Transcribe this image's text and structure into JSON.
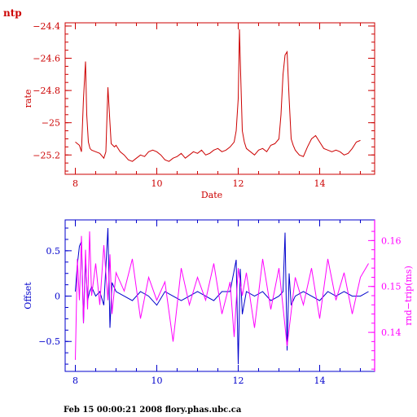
{
  "app_label": "ntp",
  "footer": "Feb 15 00:00:21 2008 flory.phas.ubc.ca",
  "colors": {
    "top": "#cc0000",
    "offset": "#0000cc",
    "rtt": "#ff00ff",
    "text": "#000000"
  },
  "chart_data": [
    {
      "type": "line",
      "title": "",
      "xlabel": "Date",
      "ylabel": "rate",
      "xlim": [
        7.75,
        15.35
      ],
      "ylim": [
        -25.32,
        -24.38
      ],
      "x_ticks": [
        8,
        10,
        12,
        14
      ],
      "x_tick_labels": [
        "8",
        "10",
        "12",
        "14"
      ],
      "y_ticks": [
        -25.2,
        -25.0,
        -24.8,
        -24.6,
        -24.4
      ],
      "y_tick_labels": [
        "−25.2",
        "−25",
        "−24.8",
        "−24.6",
        "−24.4"
      ],
      "grid": false,
      "series": [
        {
          "color": "#cc0000",
          "x": [
            8.0,
            8.05,
            8.1,
            8.15,
            8.2,
            8.25,
            8.28,
            8.32,
            8.36,
            8.4,
            8.5,
            8.6,
            8.7,
            8.75,
            8.8,
            8.85,
            8.88,
            8.92,
            8.96,
            9.0,
            9.1,
            9.2,
            9.3,
            9.4,
            9.5,
            9.6,
            9.7,
            9.8,
            9.9,
            10.0,
            10.1,
            10.2,
            10.3,
            10.4,
            10.5,
            10.6,
            10.7,
            10.8,
            10.9,
            11.0,
            11.1,
            11.2,
            11.3,
            11.4,
            11.5,
            11.6,
            11.7,
            11.8,
            11.9,
            11.95,
            12.0,
            12.03,
            12.06,
            12.1,
            12.15,
            12.2,
            12.3,
            12.4,
            12.5,
            12.6,
            12.7,
            12.8,
            12.9,
            13.0,
            13.05,
            13.1,
            13.15,
            13.2,
            13.25,
            13.3,
            13.35,
            13.4,
            13.5,
            13.6,
            13.7,
            13.8,
            13.9,
            14.0,
            14.1,
            14.2,
            14.3,
            14.4,
            14.5,
            14.6,
            14.7,
            14.8,
            14.9,
            15.0
          ],
          "values": [
            -25.12,
            -25.13,
            -25.14,
            -25.18,
            -24.85,
            -24.62,
            -24.95,
            -25.12,
            -25.16,
            -25.17,
            -25.18,
            -25.19,
            -25.22,
            -25.18,
            -24.78,
            -25.0,
            -25.13,
            -25.14,
            -25.15,
            -25.14,
            -25.18,
            -25.2,
            -25.23,
            -25.24,
            -25.22,
            -25.2,
            -25.21,
            -25.18,
            -25.17,
            -25.18,
            -25.2,
            -25.23,
            -25.24,
            -25.22,
            -25.21,
            -25.19,
            -25.22,
            -25.2,
            -25.18,
            -25.19,
            -25.17,
            -25.2,
            -25.19,
            -25.17,
            -25.16,
            -25.18,
            -25.17,
            -25.15,
            -25.12,
            -25.05,
            -24.85,
            -24.42,
            -24.7,
            -25.05,
            -25.12,
            -25.16,
            -25.18,
            -25.2,
            -25.17,
            -25.16,
            -25.18,
            -25.14,
            -25.13,
            -25.1,
            -24.95,
            -24.7,
            -24.58,
            -24.56,
            -24.85,
            -25.1,
            -25.14,
            -25.17,
            -25.2,
            -25.21,
            -25.15,
            -25.1,
            -25.08,
            -25.12,
            -25.16,
            -25.17,
            -25.18,
            -25.17,
            -25.18,
            -25.2,
            -25.19,
            -25.16,
            -25.12,
            -25.11
          ]
        }
      ]
    },
    {
      "type": "line",
      "title": "",
      "xlabel": "",
      "ylabel": "Offset",
      "y2label": "rnd−trip(ms)",
      "xlim": [
        7.75,
        15.35
      ],
      "ylim": [
        -0.83,
        0.84
      ],
      "y2lim": [
        0.1315,
        0.1645
      ],
      "x_ticks": [
        8,
        10,
        12,
        14
      ],
      "x_tick_labels": [
        "8",
        "10",
        "12",
        "14"
      ],
      "y_ticks": [
        -0.5,
        0,
        0.5
      ],
      "y_tick_labels": [
        "−0.5",
        "0",
        "0.5"
      ],
      "y2_ticks": [
        0.14,
        0.15,
        0.16
      ],
      "y2_tick_labels": [
        "0.14",
        "0.15",
        "0.16"
      ],
      "grid": false,
      "series": [
        {
          "axis": "left",
          "color": "#0000cc",
          "x": [
            8.0,
            8.05,
            8.1,
            8.15,
            8.2,
            8.25,
            8.3,
            8.35,
            8.4,
            8.5,
            8.6,
            8.7,
            8.8,
            8.85,
            8.9,
            9.0,
            9.2,
            9.4,
            9.6,
            9.8,
            10.0,
            10.2,
            10.4,
            10.6,
            10.8,
            11.0,
            11.2,
            11.4,
            11.6,
            11.8,
            11.95,
            12.0,
            12.05,
            12.1,
            12.2,
            12.4,
            12.6,
            12.8,
            13.0,
            13.1,
            13.15,
            13.2,
            13.25,
            13.3,
            13.4,
            13.6,
            13.8,
            14.0,
            14.2,
            14.4,
            14.6,
            14.8,
            15.0,
            15.2
          ],
          "values": [
            0.05,
            0.35,
            0.55,
            0.6,
            -0.3,
            0.4,
            -0.05,
            0.05,
            0.1,
            0.0,
            0.05,
            -0.1,
            0.75,
            -0.35,
            0.15,
            0.05,
            0.0,
            -0.05,
            0.05,
            0.0,
            -0.1,
            0.05,
            0.0,
            -0.05,
            0.0,
            0.05,
            0.0,
            -0.05,
            0.05,
            0.05,
            0.4,
            -0.75,
            0.3,
            -0.2,
            0.05,
            0.0,
            0.05,
            -0.05,
            0.0,
            0.05,
            0.7,
            -0.6,
            0.25,
            -0.1,
            0.0,
            0.05,
            0.0,
            -0.05,
            0.05,
            0.0,
            0.05,
            0.0,
            0.0,
            0.05
          ]
        },
        {
          "axis": "right",
          "color": "#ff00ff",
          "x": [
            8.0,
            8.05,
            8.1,
            8.15,
            8.2,
            8.25,
            8.3,
            8.35,
            8.4,
            8.5,
            8.6,
            8.7,
            8.8,
            8.85,
            8.9,
            9.0,
            9.2,
            9.4,
            9.6,
            9.8,
            10.0,
            10.2,
            10.4,
            10.6,
            10.8,
            11.0,
            11.2,
            11.4,
            11.6,
            11.8,
            11.9,
            12.0,
            12.1,
            12.2,
            12.4,
            12.6,
            12.8,
            13.0,
            13.2,
            13.4,
            13.6,
            13.8,
            14.0,
            14.2,
            14.4,
            14.6,
            14.8,
            15.0,
            15.2
          ],
          "values": [
            0.134,
            0.156,
            0.147,
            0.161,
            0.142,
            0.158,
            0.145,
            0.162,
            0.148,
            0.155,
            0.146,
            0.159,
            0.147,
            0.157,
            0.144,
            0.153,
            0.149,
            0.156,
            0.143,
            0.152,
            0.147,
            0.151,
            0.138,
            0.154,
            0.146,
            0.152,
            0.147,
            0.155,
            0.144,
            0.151,
            0.139,
            0.154,
            0.148,
            0.153,
            0.141,
            0.156,
            0.145,
            0.154,
            0.137,
            0.152,
            0.146,
            0.154,
            0.143,
            0.156,
            0.147,
            0.153,
            0.144,
            0.152,
            0.155
          ]
        }
      ]
    }
  ]
}
